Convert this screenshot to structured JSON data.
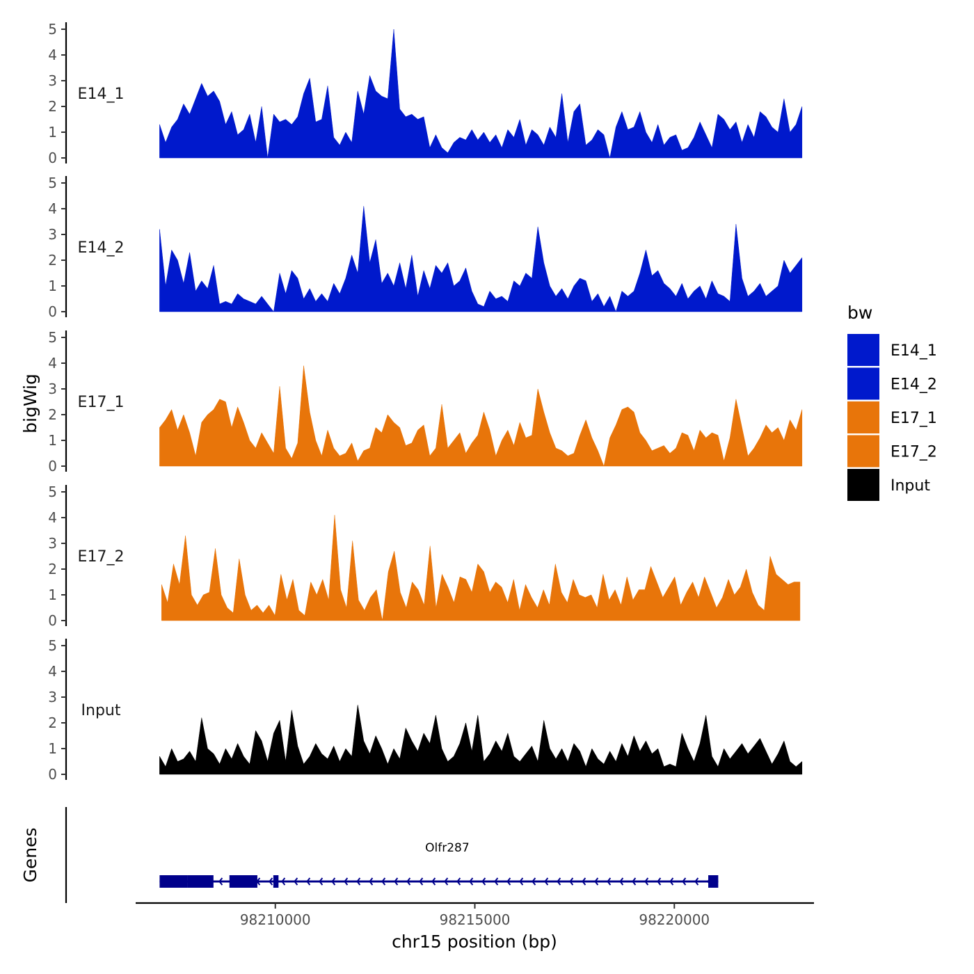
{
  "chart_data": {
    "type": "area",
    "y_axis_title": "bigWig",
    "genes_axis_title": "Genes",
    "x_axis_title": "chr15 position (bp)",
    "x_range": [
      98206500,
      98223500
    ],
    "x_ticks": [
      98210000,
      98215000,
      98220000
    ],
    "y_range": [
      0,
      5
    ],
    "y_ticks": [
      0,
      1,
      2,
      3,
      4,
      5
    ],
    "legend": {
      "title": "bw",
      "position": "right",
      "entries": [
        {
          "label": "E14_1",
          "color": "#0019CC"
        },
        {
          "label": "E14_2",
          "color": "#0019CC"
        },
        {
          "label": "E17_1",
          "color": "#E8750A"
        },
        {
          "label": "E17_2",
          "color": "#E8750A"
        },
        {
          "label": "Input",
          "color": "#000000"
        }
      ]
    },
    "tracks": [
      {
        "name": "E14_1",
        "color": "#0019CC",
        "x_start": 98207100,
        "x_end": 98223200,
        "y": [
          1.3,
          0.6,
          1.2,
          1.5,
          2.1,
          1.7,
          2.3,
          2.9,
          2.4,
          2.6,
          2.2,
          1.3,
          1.8,
          0.9,
          1.1,
          1.7,
          0.6,
          2.0,
          0.0,
          1.7,
          1.4,
          1.5,
          1.3,
          1.6,
          2.5,
          3.1,
          1.4,
          1.5,
          2.8,
          0.8,
          0.5,
          1.0,
          0.6,
          2.6,
          1.7,
          3.2,
          2.6,
          2.4,
          2.3,
          5.0,
          1.9,
          1.6,
          1.7,
          1.5,
          1.6,
          0.4,
          0.9,
          0.4,
          0.2,
          0.6,
          0.8,
          0.7,
          1.1,
          0.7,
          1.0,
          0.6,
          0.9,
          0.4,
          1.1,
          0.8,
          1.5,
          0.5,
          1.1,
          0.9,
          0.5,
          1.2,
          0.8,
          2.5,
          0.6,
          1.8,
          2.1,
          0.5,
          0.7,
          1.1,
          0.9,
          0.0,
          1.2,
          1.8,
          1.1,
          1.2,
          1.8,
          1.0,
          0.6,
          1.3,
          0.5,
          0.8,
          0.9,
          0.3,
          0.4,
          0.8,
          1.4,
          0.9,
          0.4,
          1.7,
          1.5,
          1.1,
          1.4,
          0.6,
          1.3,
          0.8,
          1.8,
          1.6,
          1.2,
          1.0,
          2.3,
          1.0,
          1.3,
          2.0
        ],
        "samples": 108
      },
      {
        "name": "E14_2",
        "color": "#0019CC",
        "x_start": 98207100,
        "x_end": 98223200,
        "y": [
          3.2,
          1.0,
          2.4,
          2.0,
          1.1,
          2.3,
          0.8,
          1.2,
          0.9,
          1.8,
          0.3,
          0.4,
          0.3,
          0.7,
          0.5,
          0.4,
          0.3,
          0.6,
          0.3,
          0.0,
          1.5,
          0.7,
          1.6,
          1.3,
          0.5,
          0.9,
          0.4,
          0.7,
          0.4,
          1.1,
          0.7,
          1.3,
          2.2,
          1.5,
          4.1,
          1.9,
          2.8,
          1.1,
          1.5,
          1.0,
          1.9,
          0.9,
          2.2,
          0.6,
          1.6,
          0.9,
          1.8,
          1.5,
          1.9,
          1.0,
          1.2,
          1.7,
          0.8,
          0.3,
          0.2,
          0.8,
          0.5,
          0.6,
          0.4,
          1.2,
          1.0,
          1.5,
          1.3,
          3.3,
          1.9,
          1.0,
          0.6,
          0.9,
          0.5,
          1.0,
          1.3,
          1.2,
          0.4,
          0.7,
          0.2,
          0.6,
          0.0,
          0.8,
          0.6,
          0.8,
          1.5,
          2.4,
          1.4,
          1.6,
          1.1,
          0.9,
          0.6,
          1.1,
          0.5,
          0.8,
          1.0,
          0.5,
          1.2,
          0.7,
          0.6,
          0.4,
          3.4,
          1.3,
          0.6,
          0.8,
          1.1,
          0.6,
          0.8,
          1.0,
          2.0,
          1.5,
          1.8,
          2.1
        ],
        "samples": 108
      },
      {
        "name": "E17_1",
        "color": "#E8750A",
        "x_start": 98207100,
        "x_end": 98223200,
        "y": [
          1.5,
          1.8,
          2.2,
          1.4,
          2.0,
          1.3,
          0.4,
          1.7,
          2.0,
          2.2,
          2.6,
          2.5,
          1.5,
          2.3,
          1.7,
          1.0,
          0.7,
          1.3,
          0.9,
          0.5,
          3.1,
          0.7,
          0.3,
          0.9,
          3.9,
          2.1,
          1.0,
          0.4,
          1.4,
          0.7,
          0.4,
          0.5,
          0.9,
          0.2,
          0.6,
          0.7,
          1.5,
          1.3,
          2.0,
          1.7,
          1.5,
          0.8,
          0.9,
          1.4,
          1.6,
          0.4,
          0.7,
          2.4,
          0.7,
          1.0,
          1.3,
          0.5,
          0.9,
          1.2,
          2.1,
          1.4,
          0.4,
          1.0,
          1.4,
          0.8,
          1.7,
          1.1,
          1.2,
          3.0,
          2.1,
          1.3,
          0.7,
          0.6,
          0.4,
          0.5,
          1.2,
          1.8,
          1.1,
          0.6,
          0.0,
          1.1,
          1.6,
          2.2,
          2.3,
          2.1,
          1.3,
          1.0,
          0.6,
          0.7,
          0.8,
          0.5,
          0.7,
          1.3,
          1.2,
          0.6,
          1.4,
          1.1,
          1.3,
          1.2,
          0.2,
          1.1,
          2.6,
          1.5,
          0.4,
          0.7,
          1.1,
          1.6,
          1.3,
          1.5,
          1.0,
          1.8,
          1.4,
          2.2
        ],
        "samples": 108
      },
      {
        "name": "E17_2",
        "color": "#E8750A",
        "x_start": 98207150,
        "x_end": 98223150,
        "y": [
          1.4,
          0.7,
          2.2,
          1.4,
          3.3,
          1.0,
          0.6,
          1.0,
          1.1,
          2.8,
          1.0,
          0.5,
          0.3,
          2.4,
          1.0,
          0.4,
          0.6,
          0.3,
          0.6,
          0.2,
          1.8,
          0.8,
          1.6,
          0.4,
          0.2,
          1.5,
          1.0,
          1.6,
          0.8,
          4.1,
          1.2,
          0.5,
          3.1,
          0.8,
          0.4,
          0.9,
          1.2,
          0.0,
          1.9,
          2.7,
          1.1,
          0.5,
          1.5,
          1.2,
          0.6,
          2.9,
          0.5,
          1.8,
          1.3,
          0.7,
          1.7,
          1.6,
          1.1,
          2.2,
          1.9,
          1.1,
          1.5,
          1.3,
          0.7,
          1.6,
          0.4,
          1.4,
          0.9,
          0.5,
          1.2,
          0.6,
          2.2,
          1.1,
          0.7,
          1.6,
          1.0,
          0.9,
          1.0,
          0.5,
          1.8,
          0.8,
          1.2,
          0.6,
          1.7,
          0.8,
          1.2,
          1.2,
          2.1,
          1.5,
          0.9,
          1.3,
          1.7,
          0.6,
          1.1,
          1.5,
          0.9,
          1.7,
          1.1,
          0.5,
          0.9,
          1.6,
          1.0,
          1.3,
          2.0,
          1.1,
          0.6,
          0.4,
          2.5,
          1.8,
          1.6,
          1.4,
          1.5,
          1.5
        ],
        "samples": 108
      },
      {
        "name": "Input",
        "color": "#000000",
        "x_start": 98207100,
        "x_end": 98223200,
        "y": [
          0.7,
          0.3,
          1.0,
          0.5,
          0.6,
          0.9,
          0.5,
          2.2,
          1.0,
          0.8,
          0.4,
          1.0,
          0.6,
          1.2,
          0.7,
          0.4,
          1.7,
          1.3,
          0.5,
          1.6,
          2.1,
          0.5,
          2.5,
          1.1,
          0.4,
          0.7,
          1.2,
          0.8,
          0.6,
          1.1,
          0.5,
          1.0,
          0.7,
          2.7,
          1.3,
          0.8,
          1.5,
          1.0,
          0.4,
          1.0,
          0.6,
          1.8,
          1.3,
          0.9,
          1.6,
          1.2,
          2.3,
          1.0,
          0.5,
          0.7,
          1.2,
          2.0,
          0.9,
          2.3,
          0.5,
          0.8,
          1.3,
          0.9,
          1.6,
          0.7,
          0.5,
          0.8,
          1.1,
          0.5,
          2.1,
          1.0,
          0.6,
          1.0,
          0.5,
          1.2,
          0.9,
          0.3,
          1.0,
          0.6,
          0.4,
          0.9,
          0.5,
          1.2,
          0.7,
          1.5,
          0.9,
          1.3,
          0.8,
          1.0,
          0.3,
          0.4,
          0.3,
          1.6,
          1.0,
          0.5,
          1.2,
          2.3,
          0.7,
          0.3,
          1.0,
          0.6,
          0.9,
          1.2,
          0.8,
          1.1,
          1.4,
          0.9,
          0.4,
          0.8,
          1.3,
          0.5,
          0.3,
          0.5
        ],
        "samples": 108
      }
    ],
    "gene": {
      "name": "Olfr287",
      "strand": "-",
      "color": "#00008B",
      "start": 98207100,
      "end": 98221100,
      "exons": [
        [
          98207100,
          98207800
        ],
        [
          98207800,
          98208450
        ],
        [
          98208850,
          98209550
        ],
        [
          98209950,
          98210080
        ],
        [
          98220850,
          98221100
        ]
      ]
    }
  }
}
